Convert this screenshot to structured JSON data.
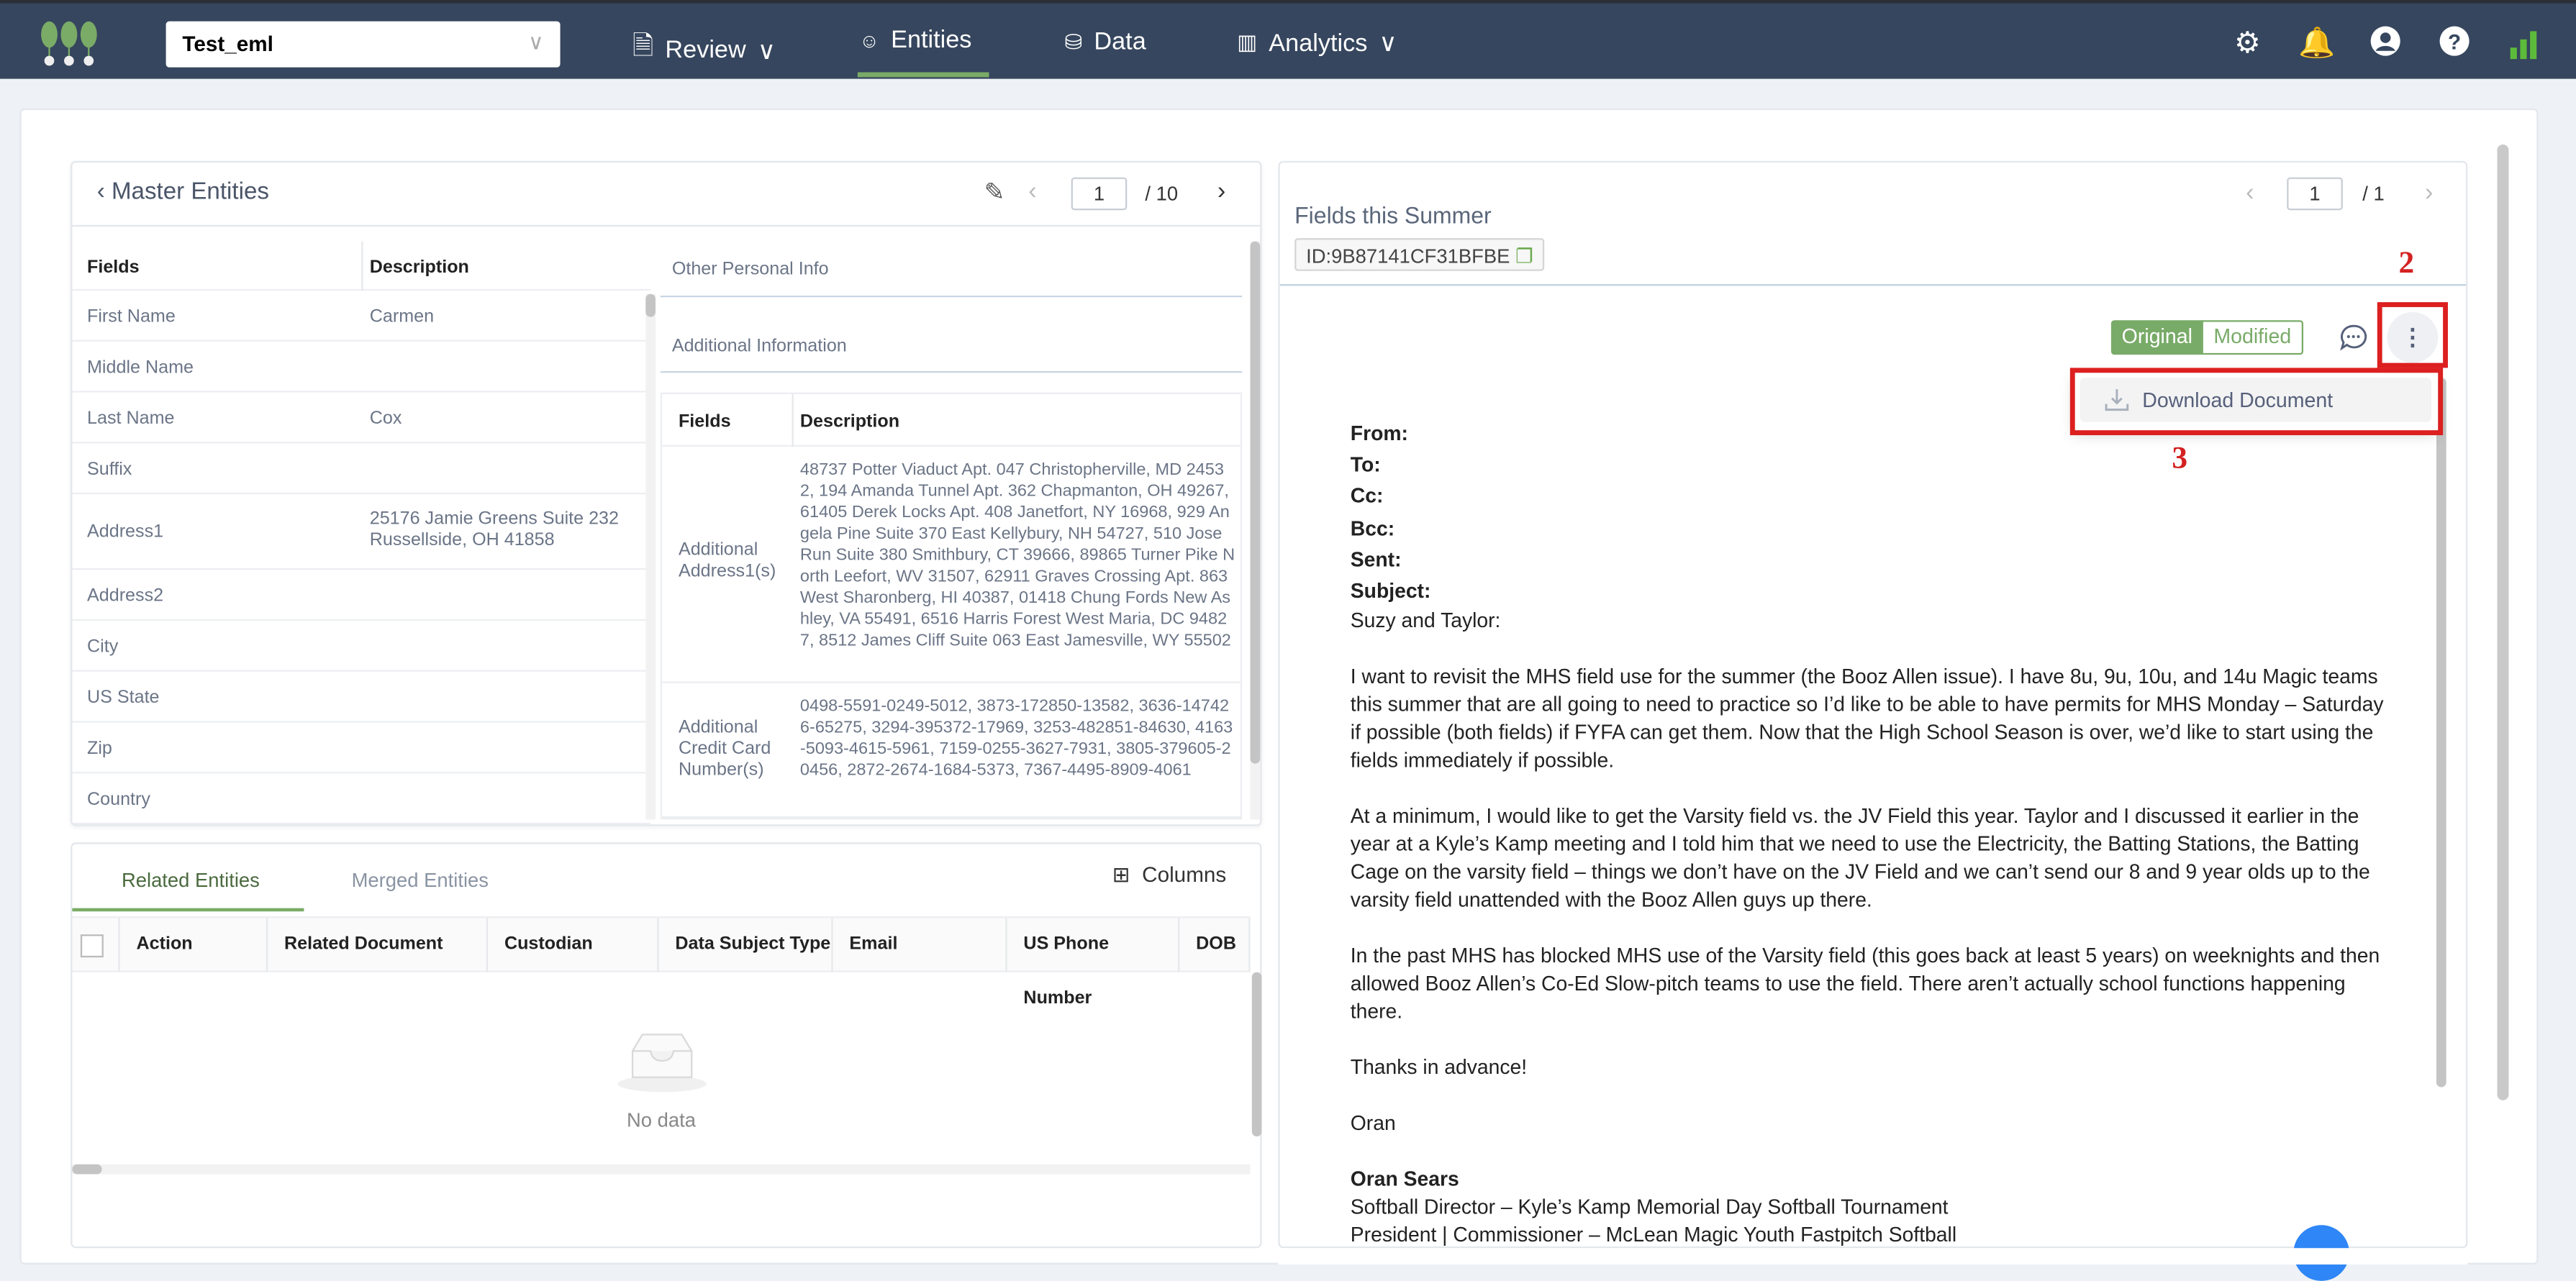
{
  "nav": {
    "project_select": "Test_eml",
    "items": [
      {
        "label": "Review",
        "icon": "document-icon",
        "has_dropdown": true
      },
      {
        "label": "Entities",
        "icon": "people-icon",
        "active": true
      },
      {
        "label": "Data",
        "icon": "database-icon"
      },
      {
        "label": "Analytics",
        "icon": "bar-chart-icon",
        "has_dropdown": true
      }
    ],
    "right_icons": [
      "gear-icon",
      "bell-icon",
      "user-icon",
      "help-icon",
      "signal-icon"
    ],
    "accent": "#7aab67",
    "background": "#36465e"
  },
  "master": {
    "title": "Master Entities",
    "page": "1",
    "page_total": "/ 10",
    "columns": [
      "Fields",
      "Description"
    ],
    "rows": [
      {
        "field": "First Name",
        "value": "Carmen"
      },
      {
        "field": "Middle Name",
        "value": ""
      },
      {
        "field": "Last Name",
        "value": "Cox"
      },
      {
        "field": "Suffix",
        "value": ""
      },
      {
        "field": "Address1",
        "value": "25176 Jamie Greens Suite 232 Russellside, OH 41858"
      },
      {
        "field": "Address2",
        "value": ""
      },
      {
        "field": "City",
        "value": ""
      },
      {
        "field": "US State",
        "value": ""
      },
      {
        "field": "Zip",
        "value": ""
      },
      {
        "field": "Country",
        "value": ""
      }
    ],
    "other_personal_info": "Other Personal Info",
    "additional_information": "Additional Information",
    "additional_columns": [
      "Fields",
      "Description"
    ],
    "additional_rows": [
      {
        "field": "Additional Address1(s)",
        "value": "48737 Potter Viaduct Apt. 047 Christopherville, MD 24532, 194 Amanda Tunnel Apt. 362 Chapmanton, OH 49267, 61405 Derek Locks Apt. 408 Janetfort, NY 16968, 929 Angela Pine Suite 370 East Kellybury, NH 54727, 510 Jose Run Suite 380 Smithbury, CT 39666, 89865 Turner Pike North Leefort, WV 31507, 62911 Graves Crossing Apt. 863 West Sharonberg, HI 40387, 01418 Chung Fords New Ashley, VA 55491, 6516 Harris Forest West Maria, DC 94827, 8512 James Cliff Suite 063 East Jamesville, WY 55502"
      },
      {
        "field": "Additional Credit Card Number(s)",
        "value": "0498-5591-0249-5012, 3873-172850-13582, 3636-147426-65275, 3294-395372-17969, 3253-482851-84630, 4163-5093-4615-5961, 7159-0255-3627-7931, 3805-379605-20456, 2872-2674-1684-5373, 7367-4495-8909-4061"
      }
    ]
  },
  "related": {
    "tabs": [
      {
        "label": "Related Entities",
        "active": true
      },
      {
        "label": "Merged Entities"
      }
    ],
    "columns_button": "Columns",
    "columns": [
      "Action",
      "Related Document",
      "Custodian",
      "Data Subject Type",
      "Email",
      "US Phone Number",
      "DOB"
    ],
    "empty_text": "No data"
  },
  "document": {
    "page": "1",
    "page_total": "/ 1",
    "title": "Fields this Summer",
    "id": "ID:9B87141CF31BFBE",
    "toggle": {
      "original": "Original",
      "modified": "Modified",
      "selected": "Original"
    },
    "menu": {
      "download": "Download Document"
    },
    "annotations": {
      "kebab": "2",
      "download": "3"
    },
    "headers": [
      "From:",
      "To:",
      "Cc:",
      "Bcc:",
      "Sent:",
      "Subject:"
    ],
    "greeting": "Suzy and Taylor:",
    "paragraphs": [
      "I want to revisit the MHS field use for the summer (the Booz Allen issue).  I have 8u, 9u, 10u, and 14u Magic teams this summer that are all going to need to practice so I’d like to be able to have permits for MHS Monday – Saturday if possible (both fields) if FYFA can get them.  Now that the High School Season is over, we’d like to start using the fields immediately if possible.",
      "At a minimum, I would like to get the Varsity field vs. the JV Field this year.  Taylor and I discussed it earlier in the year at a Kyle’s Kamp meeting and I told him that we need to use the Electricity, the Batting Stations, the Batting Cage on the varsity field – things we don’t have on the JV Field and we can’t send our 8 and 9 year olds up to the varsity field unattended with the Booz Allen guys up there.",
      "In the past MHS has blocked MHS use of the Varsity field (this goes back at least 5 years) on weeknights and then allowed Booz Allen’s Co-Ed Slow-pitch teams to use the field.  There aren’t actually school functions happening there.",
      "Thanks in advance!",
      "Oran"
    ],
    "signature": {
      "name": "Oran Sears",
      "lines": [
        "Softball Director – Kyle’s Kamp Memorial Day Softball Tournament",
        "President | Commissioner – McLean Magic Youth Fastpitch Softball"
      ]
    }
  }
}
